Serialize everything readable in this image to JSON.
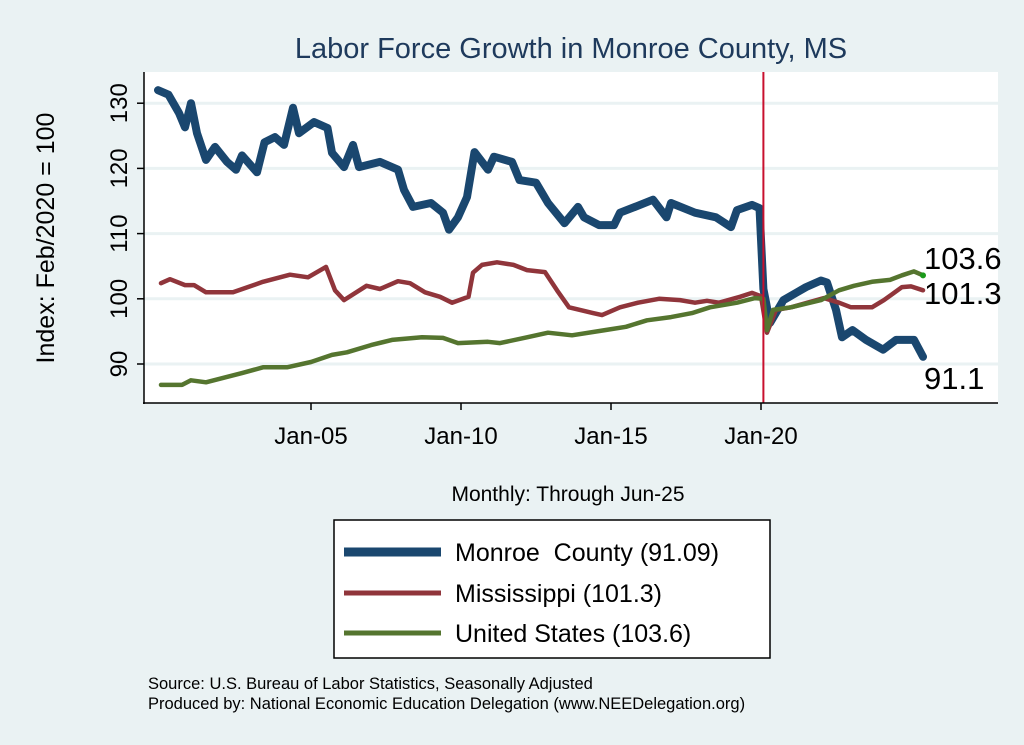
{
  "chart_data": {
    "type": "line",
    "title": "Labor Force Growth in Monroe  County, MS",
    "xlabel": "Monthly: Through Jun-25",
    "ylabel": "Index: Feb/2020 = 100",
    "xlim": [
      1999.9,
      2025.45
    ],
    "ylim": [
      85.3,
      135.1
    ],
    "grid": true,
    "yticks": [
      {
        "value": 90,
        "label": "90"
      },
      {
        "value": 100,
        "label": "100"
      },
      {
        "value": 110,
        "label": "110"
      },
      {
        "value": 120,
        "label": "120"
      },
      {
        "value": 130,
        "label": "130"
      }
    ],
    "xticks": [
      {
        "value": 2005.0,
        "label": "Jan-05"
      },
      {
        "value": 2010.0,
        "label": "Jan-10"
      },
      {
        "value": 2015.0,
        "label": "Jan-15"
      },
      {
        "value": 2020.0,
        "label": "Jan-20"
      }
    ],
    "reference_line_x": 2020.08,
    "legend_position": "bottom",
    "series": [
      {
        "name": "Monroe  County (91.09)",
        "color": "#1a476f",
        "end_label": "91.1",
        "points": [
          [
            1999.9,
            132.0
          ],
          [
            2000.25,
            131.3
          ],
          [
            2000.6,
            128.5
          ],
          [
            2000.8,
            126.3
          ],
          [
            2001.0,
            130
          ],
          [
            2001.2,
            125.4
          ],
          [
            2001.5,
            121.3
          ],
          [
            2001.8,
            123.3
          ],
          [
            2002.2,
            121
          ],
          [
            2002.5,
            119.8
          ],
          [
            2002.7,
            122
          ],
          [
            2003.2,
            119.4
          ],
          [
            2003.45,
            124
          ],
          [
            2003.8,
            124.8
          ],
          [
            2004.1,
            123.6
          ],
          [
            2004.4,
            129.3
          ],
          [
            2004.6,
            125.4
          ],
          [
            2005.1,
            127.1
          ],
          [
            2005.55,
            126.2
          ],
          [
            2005.7,
            122.4
          ],
          [
            2006.1,
            120.2
          ],
          [
            2006.4,
            123.6
          ],
          [
            2006.6,
            120.2
          ],
          [
            2007.3,
            121
          ],
          [
            2007.9,
            119.8
          ],
          [
            2008.1,
            116.7
          ],
          [
            2008.4,
            114.1
          ],
          [
            2009.0,
            114.7
          ],
          [
            2009.4,
            113.2
          ],
          [
            2009.6,
            110.6
          ],
          [
            2009.9,
            112.5
          ],
          [
            2010.2,
            115.6
          ],
          [
            2010.45,
            122.5
          ],
          [
            2010.9,
            119.8
          ],
          [
            2011.1,
            121.8
          ],
          [
            2011.7,
            121
          ],
          [
            2011.95,
            118.2
          ],
          [
            2012.5,
            117.8
          ],
          [
            2012.9,
            114.7
          ],
          [
            2013.45,
            111.6
          ],
          [
            2013.9,
            114.1
          ],
          [
            2014.1,
            112.5
          ],
          [
            2014.6,
            111.3
          ],
          [
            2015.1,
            111.3
          ],
          [
            2015.3,
            113.2
          ],
          [
            2015.8,
            114.1
          ],
          [
            2016.4,
            115.2
          ],
          [
            2016.85,
            112.5
          ],
          [
            2017.0,
            114.7
          ],
          [
            2017.8,
            113.2
          ],
          [
            2018.5,
            112.5
          ],
          [
            2019.0,
            111.0
          ],
          [
            2019.2,
            113.6
          ],
          [
            2019.7,
            114.4
          ],
          [
            2019.95,
            113.9
          ],
          [
            2020.08,
            101.5
          ],
          [
            2020.3,
            96.3
          ],
          [
            2020.75,
            99.8
          ],
          [
            2021.2,
            101
          ],
          [
            2021.5,
            101.8
          ],
          [
            2022.0,
            102.8
          ],
          [
            2022.2,
            102.5
          ],
          [
            2022.5,
            98.3
          ],
          [
            2022.7,
            94.1
          ],
          [
            2023.05,
            95.2
          ],
          [
            2023.5,
            93.7
          ],
          [
            2024.07,
            92.2
          ],
          [
            2024.5,
            93.7
          ],
          [
            2025.1,
            93.7
          ],
          [
            2025.4,
            91.1
          ]
        ]
      },
      {
        "name": "Mississippi (101.3)",
        "color": "#90353b",
        "end_label": "101.3",
        "points": [
          [
            2000.0,
            102.4
          ],
          [
            2000.3,
            103
          ],
          [
            2000.8,
            102.1
          ],
          [
            2001.1,
            102.1
          ],
          [
            2001.5,
            101
          ],
          [
            2002.4,
            101
          ],
          [
            2003.4,
            102.6
          ],
          [
            2004.3,
            103.7
          ],
          [
            2004.9,
            103.3
          ],
          [
            2005.5,
            104.9
          ],
          [
            2005.8,
            101.3
          ],
          [
            2006.1,
            99.8
          ],
          [
            2006.85,
            102
          ],
          [
            2007.3,
            101.5
          ],
          [
            2007.9,
            102.7
          ],
          [
            2008.3,
            102.4
          ],
          [
            2008.8,
            101
          ],
          [
            2009.3,
            100.3
          ],
          [
            2009.7,
            99.4
          ],
          [
            2010.25,
            100.3
          ],
          [
            2010.4,
            104
          ],
          [
            2010.7,
            105.2
          ],
          [
            2011.2,
            105.6
          ],
          [
            2011.75,
            105.2
          ],
          [
            2012.2,
            104.4
          ],
          [
            2012.8,
            104.1
          ],
          [
            2013.2,
            101.3
          ],
          [
            2013.6,
            98.7
          ],
          [
            2014.4,
            97.8
          ],
          [
            2014.7,
            97.5
          ],
          [
            2015.3,
            98.7
          ],
          [
            2015.9,
            99.4
          ],
          [
            2016.6,
            100
          ],
          [
            2017.3,
            99.8
          ],
          [
            2017.8,
            99.4
          ],
          [
            2018.2,
            99.7
          ],
          [
            2018.6,
            99.4
          ],
          [
            2019.3,
            100.3
          ],
          [
            2019.7,
            100.9
          ],
          [
            2020.0,
            100.4
          ],
          [
            2020.2,
            94.8
          ],
          [
            2020.5,
            98.3
          ],
          [
            2021.0,
            98.7
          ],
          [
            2022.1,
            100.1
          ],
          [
            2022.6,
            99.4
          ],
          [
            2023.0,
            98.7
          ],
          [
            2023.7,
            98.7
          ],
          [
            2024.1,
            99.8
          ],
          [
            2024.7,
            101.8
          ],
          [
            2025.0,
            101.9
          ],
          [
            2025.4,
            101.3
          ]
        ]
      },
      {
        "name": "United States (103.6)",
        "color": "#55752f",
        "end_label": "103.6",
        "points": [
          [
            2000.0,
            86.8
          ],
          [
            2000.7,
            86.8
          ],
          [
            2001.0,
            87.5
          ],
          [
            2001.5,
            87.2
          ],
          [
            2002.7,
            88.6
          ],
          [
            2003.4,
            89.5
          ],
          [
            2004.2,
            89.5
          ],
          [
            2005.0,
            90.3
          ],
          [
            2005.7,
            91.4
          ],
          [
            2006.2,
            91.8
          ],
          [
            2007.0,
            92.9
          ],
          [
            2007.7,
            93.7
          ],
          [
            2008.7,
            94.1
          ],
          [
            2009.4,
            94
          ],
          [
            2009.9,
            93.2
          ],
          [
            2010.9,
            93.4
          ],
          [
            2011.3,
            93.2
          ],
          [
            2012.2,
            94.1
          ],
          [
            2012.9,
            94.8
          ],
          [
            2013.7,
            94.4
          ],
          [
            2014.8,
            95.2
          ],
          [
            2015.5,
            95.7
          ],
          [
            2016.2,
            96.7
          ],
          [
            2017.0,
            97.2
          ],
          [
            2017.7,
            97.8
          ],
          [
            2018.3,
            98.7
          ],
          [
            2019.2,
            99.4
          ],
          [
            2019.8,
            100.1
          ],
          [
            2020.08,
            100.0
          ],
          [
            2020.2,
            95.2
          ],
          [
            2020.4,
            98.3
          ],
          [
            2021.0,
            98.7
          ],
          [
            2022.0,
            99.8
          ],
          [
            2022.6,
            101.3
          ],
          [
            2023.1,
            102.0
          ],
          [
            2023.7,
            102.6
          ],
          [
            2024.3,
            102.9
          ],
          [
            2024.7,
            103.6
          ],
          [
            2025.1,
            104.2
          ],
          [
            2025.4,
            103.6
          ]
        ]
      }
    ]
  },
  "source_lines": [
    "Source: U.S. Bureau of Labor Statistics, Seasonally Adjusted",
    "Produced by: National Economic Education Delegation (www.NEEDelegation.org)"
  ],
  "colors": {
    "background": "#eaf2f3",
    "title": "#1e3a5c",
    "reference_line": "#c8102e",
    "end_dot": "#1a9a1a"
  }
}
